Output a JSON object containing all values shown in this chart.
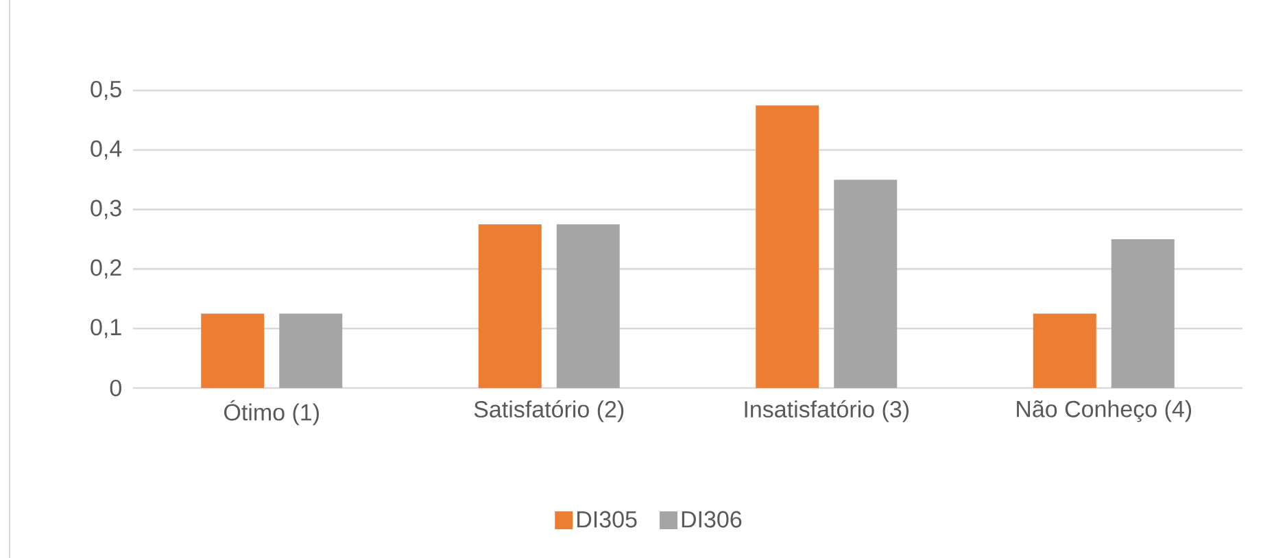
{
  "chart_data": {
    "type": "bar",
    "categories": [
      "Ótimo (1)",
      "Satisfatório (2)",
      "Insatisfatório (3)",
      "Não Conheço (4)"
    ],
    "series": [
      {
        "name": "DI305",
        "color": "#ed7d31",
        "values": [
          0.125,
          0.275,
          0.475,
          0.125
        ]
      },
      {
        "name": "DI306",
        "color": "#a5a5a5",
        "values": [
          0.125,
          0.275,
          0.35,
          0.25
        ]
      }
    ],
    "ylim": [
      0,
      0.5
    ],
    "yticks": [
      0,
      {
        "value": 0.1,
        "label": "0,1"
      },
      {
        "value": 0.2,
        "label": "0,2"
      },
      {
        "value": 0.3,
        "label": "0,3"
      },
      {
        "value": 0.4,
        "label": "0,4"
      },
      {
        "value": 0.5,
        "label": "0,5"
      }
    ],
    "grid": "y",
    "legend": "bottom"
  }
}
